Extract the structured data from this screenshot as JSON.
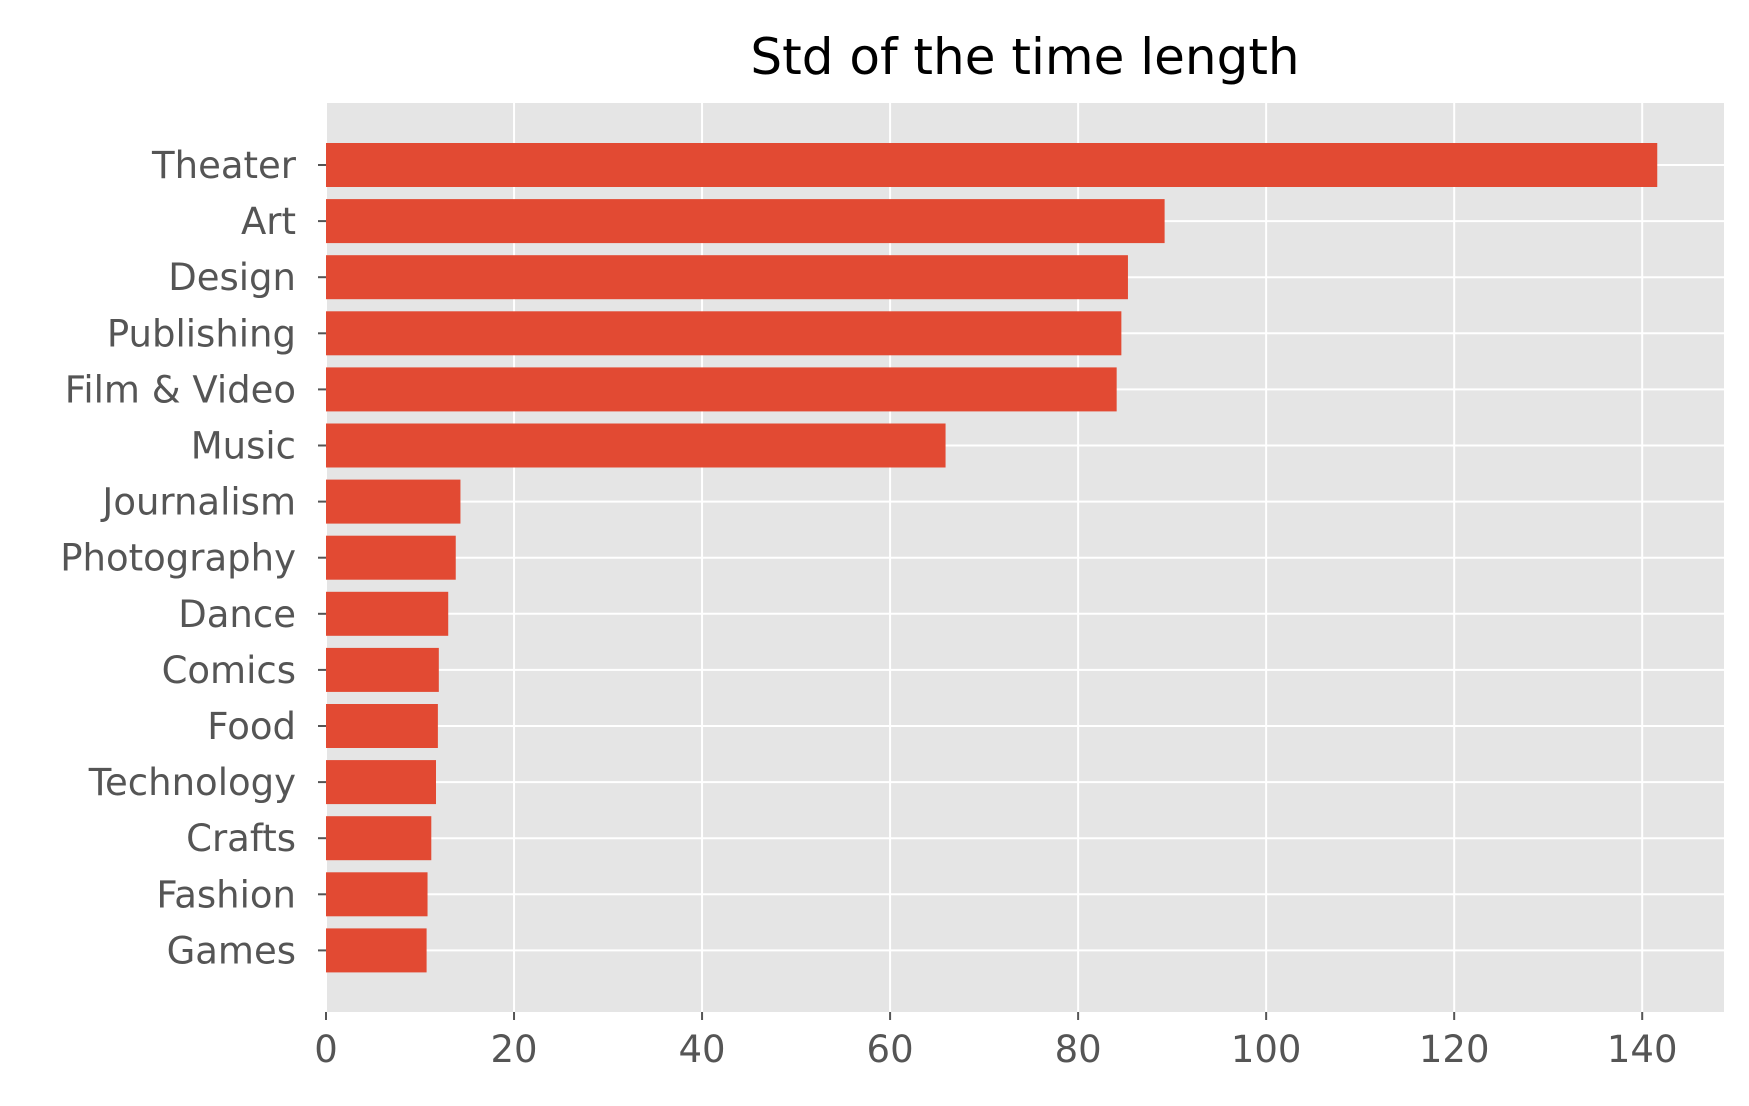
{
  "chart_data": {
    "type": "bar",
    "orientation": "horizontal",
    "title": "Std of the time length",
    "xlabel": "",
    "ylabel": "",
    "categories": [
      "Theater",
      "Art",
      "Design",
      "Publishing",
      "Film & Video",
      "Music",
      "Journalism",
      "Photography",
      "Dance",
      "Comics",
      "Food",
      "Technology",
      "Crafts",
      "Fashion",
      "Games"
    ],
    "values": [
      141.6,
      89.2,
      85.3,
      84.6,
      84.1,
      65.9,
      14.3,
      13.8,
      13.0,
      12.0,
      11.9,
      11.7,
      11.2,
      10.8,
      10.7
    ],
    "xlim": [
      0,
      148.7
    ],
    "xticks": [
      "0",
      "20",
      "40",
      "60",
      "80",
      "100",
      "120",
      "140"
    ],
    "grid": true,
    "legend": "none",
    "colors": {
      "bar": "#e24a33",
      "plot_background": "#e5e5e5",
      "grid": "#ffffff",
      "tick_text": "#555555",
      "title_text": "#000000"
    }
  }
}
